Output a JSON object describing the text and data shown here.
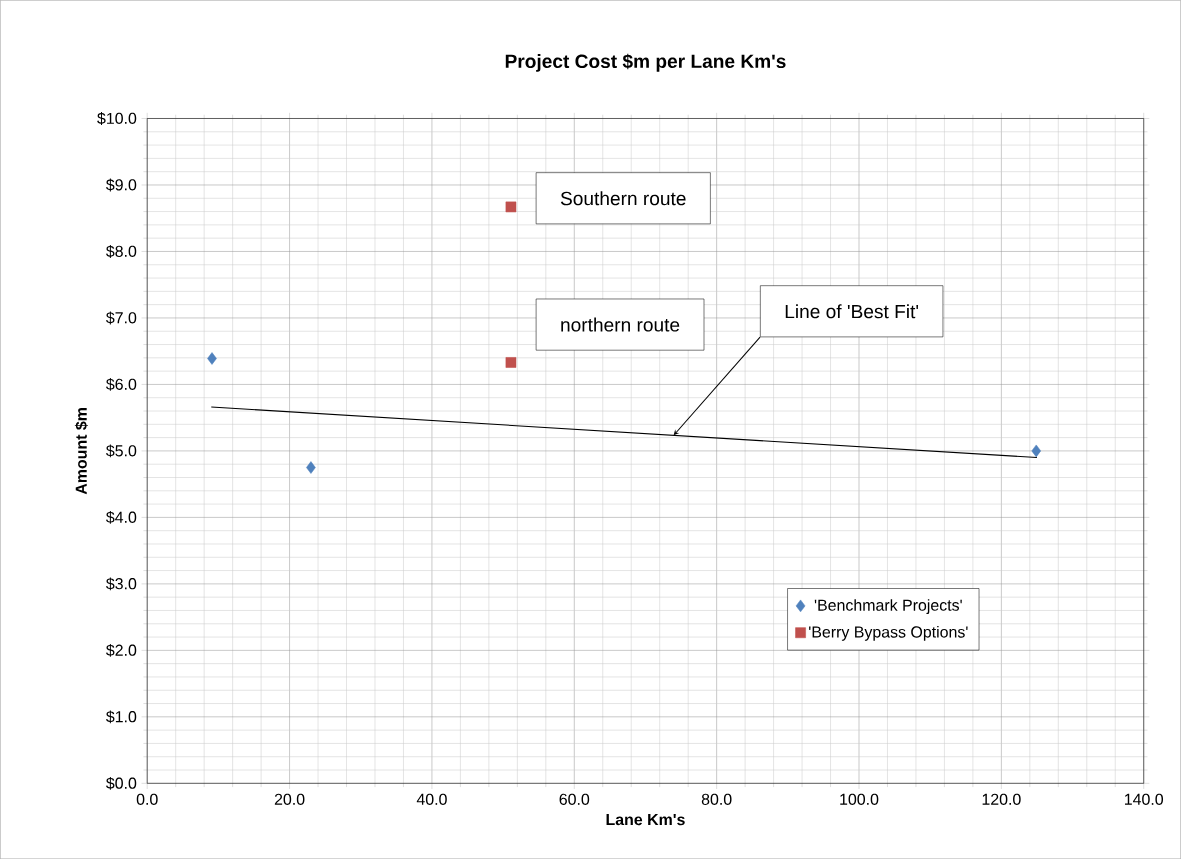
{
  "chart_data": {
    "type": "scatter",
    "title": "Project Cost $m per Lane Km's",
    "xlabel": "Lane Km's",
    "ylabel": "Amount $m",
    "xlim": [
      0,
      140
    ],
    "ylim": [
      0,
      10
    ],
    "xticks": [
      {
        "value": 0,
        "label": "0.0"
      },
      {
        "value": 20,
        "label": "20.0"
      },
      {
        "value": 40,
        "label": "40.0"
      },
      {
        "value": 60,
        "label": "60.0"
      },
      {
        "value": 80,
        "label": "80.0"
      },
      {
        "value": 100,
        "label": "100.0"
      },
      {
        "value": 120,
        "label": "120.0"
      },
      {
        "value": 140,
        "label": "140.0"
      }
    ],
    "yticks": [
      {
        "value": 0,
        "label": "$0.0"
      },
      {
        "value": 1,
        "label": "$1.0"
      },
      {
        "value": 2,
        "label": "$2.0"
      },
      {
        "value": 3,
        "label": "$3.0"
      },
      {
        "value": 4,
        "label": "$4.0"
      },
      {
        "value": 5,
        "label": "$5.0"
      },
      {
        "value": 6,
        "label": "$6.0"
      },
      {
        "value": 7,
        "label": "$7.0"
      },
      {
        "value": 8,
        "label": "$8.0"
      },
      {
        "value": 9,
        "label": "$9.0"
      },
      {
        "value": 10,
        "label": "$10.0"
      }
    ],
    "grid": true,
    "legend": "bottom right",
    "series": [
      {
        "name": "'Benchmark Projects'",
        "color": "#4f81bd",
        "marker": "diamond",
        "x": [
          9.1,
          23.0,
          124.9
        ],
        "values": [
          6.39,
          4.75,
          5.0
        ]
      },
      {
        "name": "'Berry Bypass Options'",
        "color": "#c0504d",
        "marker": "square",
        "x": [
          51.1,
          51.1
        ],
        "values": [
          8.67,
          6.33
        ]
      },
      {
        "type": "line",
        "color": "#000000",
        "marker": "none",
        "x": [
          9,
          125
        ],
        "values": [
          5.66,
          4.9
        ]
      }
    ],
    "annotations": [
      "Southern route",
      "northern route",
      "Line of 'Best Fit'"
    ]
  }
}
